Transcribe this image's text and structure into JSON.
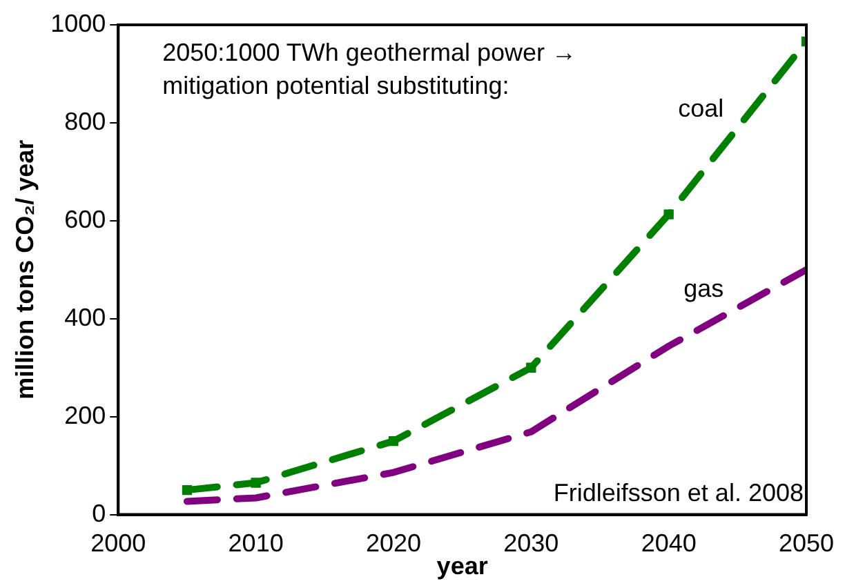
{
  "chart_data": {
    "type": "line",
    "xlabel": "year",
    "ylabel": "million tons CO₂/ year",
    "x": [
      2005,
      2010,
      2020,
      2030,
      2040,
      2050
    ],
    "series": [
      {
        "name": "coal",
        "color": "#008000",
        "values": [
          50,
          65,
          150,
          300,
          613,
          966
        ],
        "marker": "square"
      },
      {
        "name": "gas",
        "color": "#800080",
        "values": [
          27,
          34,
          86,
          169,
          344,
          500
        ],
        "marker": "none"
      }
    ],
    "xlim": [
      2000,
      2050
    ],
    "xticks": [
      2000,
      2010,
      2020,
      2030,
      2040,
      2050
    ],
    "ylim": [
      0,
      1000
    ],
    "yticks": [
      0,
      200,
      400,
      600,
      800,
      1000
    ],
    "grid": false,
    "legend": false,
    "line_style": "dashed",
    "annotations": [
      "2050:1000 TWh geothermal power → mitigation potential substituting:",
      "Fridleifsson et al. 2008"
    ]
  }
}
